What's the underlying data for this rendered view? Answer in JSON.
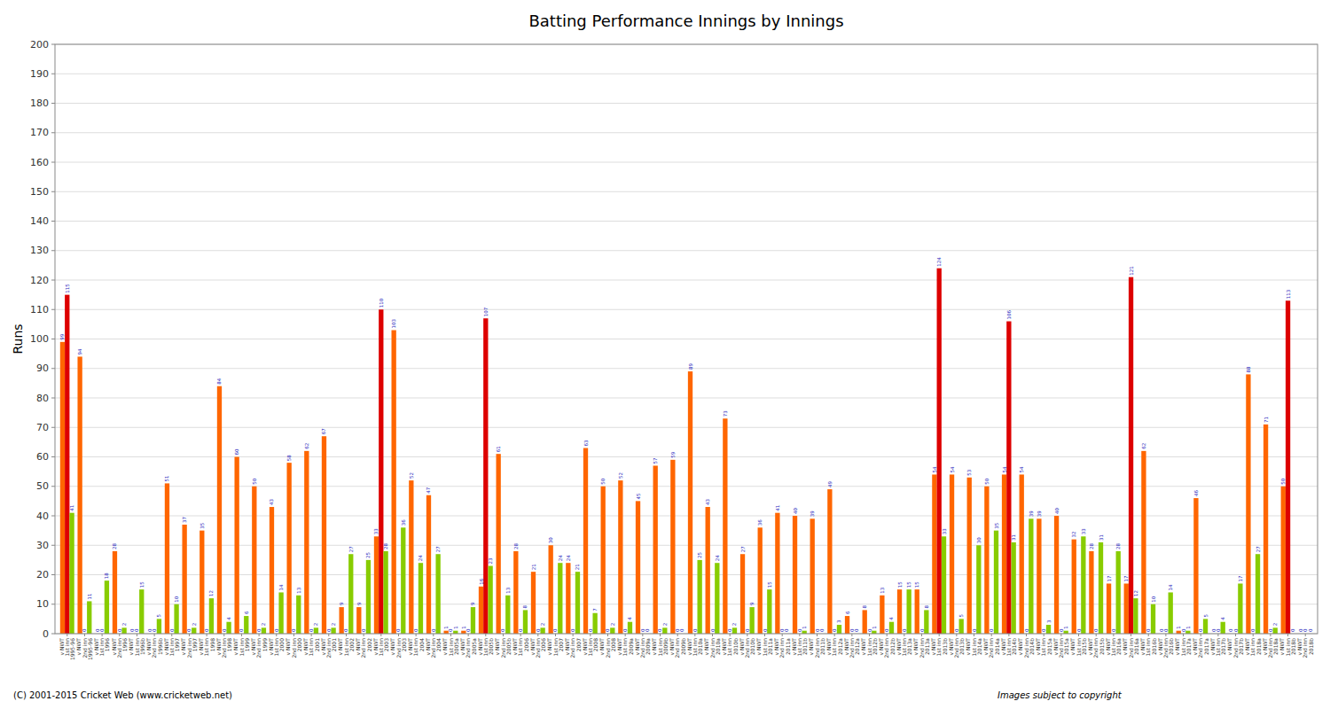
{
  "chart_data": {
    "type": "bar",
    "title": "Batting Performance Innings by Innings",
    "ylabel": "Runs",
    "categories": [
      "v NWT\n1st inn\n1995-96",
      "v NWT\n2nd inn\n1995-96",
      "v NWT\n1st inn\n1996",
      "v NWT\n2nd inn\n1996",
      "v NWT\n1st inn\n1996b",
      "v NWT\n2nd inn\n1996b",
      "v NWT\n1st inn\n1997",
      "v NWT\n2nd inn\n1997",
      "v NWT\n1st inn\n1998",
      "v NWT\n2nd inn\n1998",
      "v NWT\n1st inn\n1999",
      "v NWT\n2nd inn\n1999",
      "v NWT\n1st inn\n2000",
      "v NWT\n2nd inn\n2000",
      "v NWT\n1st inn\n2001",
      "v NWT\n2nd inn\n2001",
      "v NWT\n1st inn\n2002",
      "v NWT\n2nd inn\n2002",
      "v NWT\n1st inn\n2003",
      "v NWT\n2nd inn\n2003",
      "v NWT\n1st inn\n2004",
      "v NWT\n2nd inn\n2004",
      "v NWT\n1st inn\n2005a",
      "v NWT\n2nd inn\n2005a",
      "v NWT\n1st inn\n2005b",
      "v NWT\n2nd inn\n2005b",
      "v NWT\n1st inn\n2006",
      "v NWT\n2nd inn\n2006",
      "v NWT\n1st inn\n2007",
      "v NWT\n2nd inn\n2007",
      "v NWT\n1st inn\n2008",
      "v NWT\n2nd inn\n2008",
      "v NWT\n1st inn\n2009a",
      "v NWT\n2nd inn\n2009a",
      "v NWT\n1st inn\n2009b",
      "v NWT\n2nd inn\n2009b",
      "v NWT\n1st inn\n2010a",
      "v NWT\n2nd inn\n2010a",
      "v NWT\n1st inn\n2010b",
      "v NWT\n2nd inn\n2010b",
      "v NWT\n1st inn\n2011a",
      "v NWT\n2nd inn\n2011a",
      "v NWT\n1st inn\n2011b",
      "v NWT\n2nd inn\n2011b",
      "v NWT\n1st inn\n2012a",
      "v NWT\n2nd inn\n2012a",
      "v NWT\n1st inn\n2012b",
      "v NWT\n2nd inn\n2012b",
      "v NWT\n1st inn\n2013a",
      "v NWT\n2nd inn\n2013a",
      "v NWT\n1st inn\n2013b",
      "v NWT\n2nd inn\n2013b",
      "v NWT\n1st inn\n2014a",
      "v NWT\n2nd inn\n2014a",
      "v NWT\n1st inn\n2014b",
      "v NWT\n2nd inn\n2014b",
      "v NWT\n1st inn\n2015a",
      "v NWT\n2nd inn\n2015a",
      "v NWT\n1st inn\n2015b",
      "v NWT\n2nd inn\n2015b",
      "v NWT\n1st inn\n2016a",
      "v NWT\n2nd inn\n2016a",
      "v NWT\n1st inn\n2016b",
      "v NWT\n2nd inn\n2016b",
      "v NWT\n1st inn\n2017a",
      "v NWT\n2nd inn\n2017a",
      "v NWT\n1st inn\n2017b",
      "v NWT\n2nd inn\n2017b",
      "v NWT\n1st inn\n2018a",
      "v NWT\n2nd inn\n2018a",
      "v NWT\n1st inn\n2018b",
      "v NWT\n2nd inn\n2018b"
    ],
    "series": [
      {
        "color": "#ff6600",
        "values": [
          99,
          94,
          0,
          28,
          0,
          0,
          51,
          37,
          35,
          84,
          60,
          50,
          43,
          58,
          62,
          67,
          9,
          9,
          33,
          103,
          52,
          47,
          1,
          1,
          16,
          61,
          28,
          21,
          30,
          24,
          63,
          50,
          52,
          45,
          57,
          59,
          89,
          43,
          73,
          27,
          36,
          41,
          40,
          39,
          49,
          6,
          8,
          13,
          15,
          15,
          54,
          54,
          53,
          50,
          54,
          54,
          39,
          40,
          32,
          28,
          17,
          17,
          62,
          0,
          1,
          46,
          0,
          0,
          88,
          71,
          50,
          0
        ]
      },
      {
        "color": "#dd0000",
        "values": [
          115,
          0,
          0,
          0,
          0,
          0,
          0,
          0,
          0,
          0,
          0,
          0,
          0,
          0,
          0,
          0,
          0,
          0,
          110,
          0,
          0,
          0,
          0,
          0,
          107,
          0,
          0,
          0,
          0,
          0,
          0,
          0,
          0,
          0,
          0,
          0,
          0,
          0,
          0,
          0,
          0,
          0,
          0,
          0,
          0,
          0,
          0,
          0,
          0,
          0,
          124,
          0,
          0,
          0,
          106,
          0,
          0,
          0,
          0,
          0,
          0,
          121,
          0,
          0,
          0,
          0,
          0,
          0,
          0,
          0,
          113,
          0
        ]
      },
      {
        "color": "#88cc00",
        "values": [
          41,
          11,
          18,
          2,
          15,
          5,
          10,
          2,
          12,
          4,
          6,
          2,
          14,
          13,
          2,
          2,
          27,
          25,
          28,
          36,
          24,
          27,
          1,
          9,
          23,
          13,
          8,
          2,
          24,
          21,
          7,
          2,
          4,
          0,
          2,
          0,
          25,
          24,
          2,
          9,
          15,
          0,
          1,
          0,
          3,
          0,
          1,
          4,
          15,
          8,
          33,
          5,
          30,
          35,
          31,
          39,
          3,
          1,
          33,
          31,
          28,
          12,
          10,
          14,
          1,
          5,
          4,
          17,
          27,
          2,
          0,
          0
        ]
      }
    ],
    "ylim": [
      0,
      200
    ],
    "yticks": [
      0,
      10,
      20,
      30,
      40,
      50,
      60,
      70,
      80,
      90,
      100,
      110,
      120,
      130,
      140,
      150,
      160,
      170,
      180,
      190,
      200
    ],
    "grid": true,
    "data_labels": true,
    "annotations": [
      "(C) 2001-2015 Cricket Web (www.cricketweb.net)",
      "Images subject to copyright"
    ]
  }
}
